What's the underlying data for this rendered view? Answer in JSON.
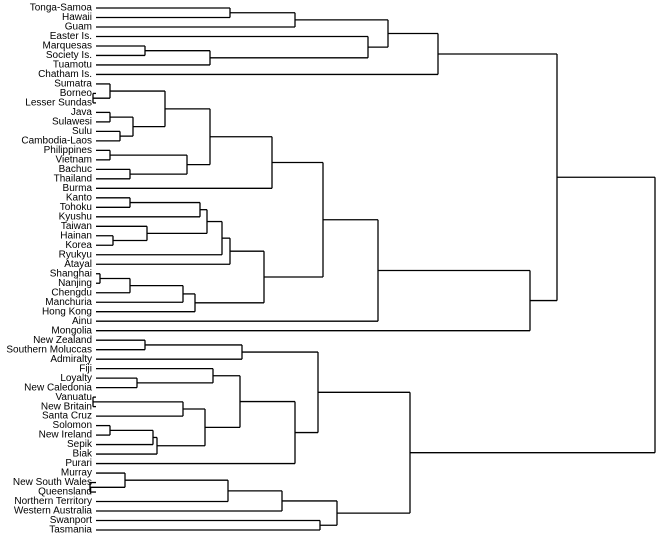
{
  "leaves": [
    "Tonga-Samoa",
    "Hawaii",
    "Guam",
    "Easter Is.",
    "Marquesas",
    "Society Is.",
    "Tuamotu",
    "Chatham Is.",
    "Sumatra",
    "Borneo",
    "Lesser Sundas",
    "Java",
    "Sulawesi",
    "Sulu",
    "Cambodia-Laos",
    "Philippines",
    "Vietnam",
    "Bachuc",
    "Thailand",
    "Burma",
    "Kanto",
    "Tohoku",
    "Kyushu",
    "Taiwan",
    "Hainan",
    "Korea",
    "Ryukyu",
    "Atayal",
    "Shanghai",
    "Nanjing",
    "Chengdu",
    "Manchuria",
    "Hong Kong",
    "Ainu",
    "Mongolia",
    "New Zealand",
    "Southern Moluccas",
    "Admiralty",
    "Fiji",
    "Loyalty",
    "New Caledonia",
    "Vanuatu",
    "New Britain",
    "Santa Cruz",
    "Solomon",
    "New Ireland",
    "Sepik",
    "Biak",
    "Purari",
    "Murray",
    "New South Wales",
    "Queensland",
    "Northern Territory",
    "Western Australia",
    "Swanport",
    "Tasmania"
  ]
}
